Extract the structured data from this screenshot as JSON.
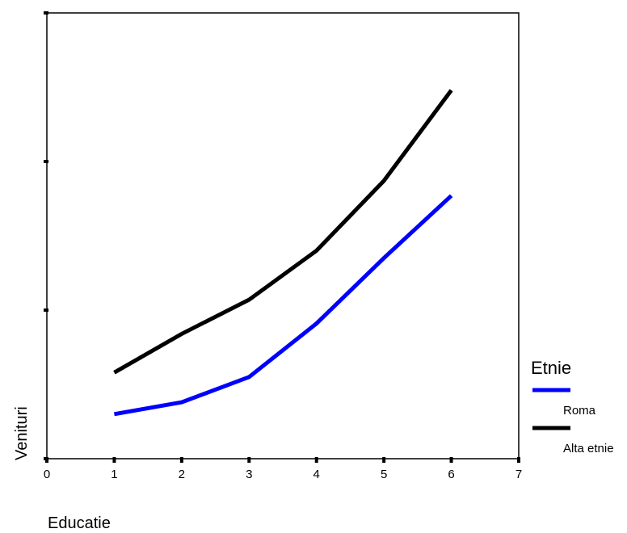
{
  "chart_data": {
    "type": "line",
    "xlabel": "Educatie",
    "ylabel": "Venituri",
    "xlim": [
      0,
      7
    ],
    "ylim": [
      0,
      3
    ],
    "x_ticks": [
      "0",
      "1",
      "2",
      "3",
      "4",
      "5",
      "6",
      "7"
    ],
    "y_tick_labels_shown": false,
    "grid": false,
    "legend": {
      "title": "Etnie",
      "position": "right-bottom"
    },
    "x": [
      1,
      2,
      3,
      4,
      5,
      6
    ],
    "series": [
      {
        "name": "Roma",
        "color": "#0000ff",
        "values": [
          0.3,
          0.38,
          0.55,
          0.91,
          1.35,
          1.77
        ]
      },
      {
        "name": "Alta etnie",
        "color": "#000000",
        "values": [
          0.58,
          0.84,
          1.07,
          1.4,
          1.87,
          2.48
        ]
      }
    ]
  }
}
